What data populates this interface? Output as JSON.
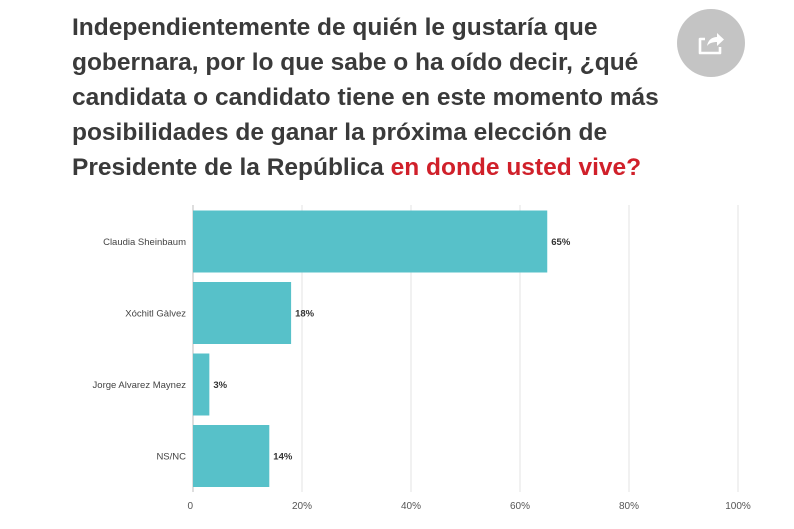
{
  "question": {
    "main": "Independientemente de quién le gustaría que gobernara, por lo que sabe o ha oído decir, ¿qué candidata o candidato tiene en este momento más posibilidades de ganar la próxima elección de Presidente de la República",
    "highlight": "en donde usted vive?",
    "highlight_color": "#d0202a"
  },
  "share": {
    "icon": "share-icon"
  },
  "chart_data": {
    "type": "bar",
    "orientation": "horizontal",
    "categories": [
      "Claudia Sheinbaum",
      "Xóchitl Gàlvez",
      "Jorge Alvarez Maynez",
      "NS/NC"
    ],
    "values": [
      65,
      18,
      3,
      14
    ],
    "value_labels": [
      "65%",
      "18%",
      "3%",
      "14%"
    ],
    "xlim": [
      0,
      100
    ],
    "xticks": [
      0,
      20,
      40,
      60,
      80,
      100
    ],
    "xtick_labels": [
      "0",
      "20%",
      "40%",
      "60%",
      "80%",
      "100%"
    ],
    "grid": true,
    "bar_color": "#57c1c9"
  }
}
